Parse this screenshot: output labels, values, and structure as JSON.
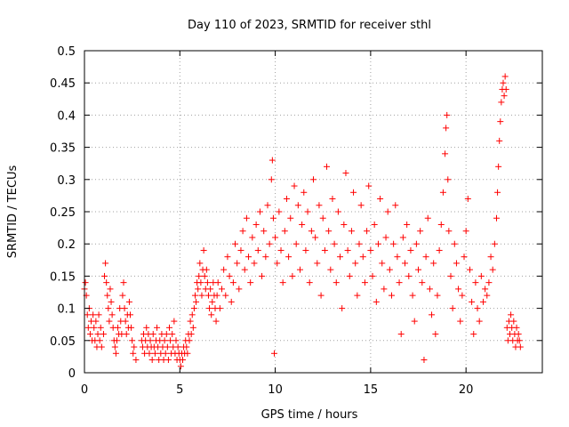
{
  "chart_data": {
    "type": "scatter",
    "title": "Day 110 of 2023, SRMTID for receiver sthl",
    "xlabel": "GPS time / hours",
    "ylabel": "SRMTID / TECUs",
    "xlim": [
      0,
      24
    ],
    "ylim": [
      0,
      0.5
    ],
    "x_ticks": [
      0,
      5,
      10,
      15,
      20
    ],
    "x_tick_labels": [
      "0",
      "5",
      "10",
      "15",
      "20"
    ],
    "y_ticks": [
      0,
      0.05,
      0.1,
      0.15,
      0.2,
      0.25,
      0.3,
      0.35,
      0.4,
      0.45,
      0.5
    ],
    "y_tick_labels": [
      "0",
      "0.05",
      "0.1",
      "0.15",
      "0.2",
      "0.25",
      "0.3",
      "0.35",
      "0.4",
      "0.45",
      "0.5"
    ],
    "grid": true,
    "marker": "+",
    "color": "#ff0000",
    "series": [
      {
        "values": [
          [
            0.0,
            0.13
          ],
          [
            0.05,
            0.14
          ],
          [
            0.1,
            0.12
          ],
          [
            0.15,
            0.09
          ],
          [
            0.2,
            0.07
          ],
          [
            0.25,
            0.1
          ],
          [
            0.3,
            0.06
          ],
          [
            0.35,
            0.08
          ],
          [
            0.4,
            0.05
          ],
          [
            0.45,
            0.09
          ],
          [
            0.5,
            0.07
          ],
          [
            0.55,
            0.05
          ],
          [
            0.6,
            0.08
          ],
          [
            0.65,
            0.04
          ],
          [
            0.7,
            0.06
          ],
          [
            0.75,
            0.09
          ],
          [
            0.8,
            0.05
          ],
          [
            0.85,
            0.07
          ],
          [
            0.9,
            0.04
          ],
          [
            1.0,
            0.06
          ],
          [
            1.05,
            0.15
          ],
          [
            1.1,
            0.17
          ],
          [
            1.15,
            0.14
          ],
          [
            1.2,
            0.12
          ],
          [
            1.25,
            0.1
          ],
          [
            1.3,
            0.08
          ],
          [
            1.35,
            0.13
          ],
          [
            1.4,
            0.11
          ],
          [
            1.45,
            0.09
          ],
          [
            1.5,
            0.07
          ],
          [
            1.55,
            0.05
          ],
          [
            1.6,
            0.04
          ],
          [
            1.65,
            0.03
          ],
          [
            1.7,
            0.05
          ],
          [
            1.75,
            0.07
          ],
          [
            1.8,
            0.06
          ],
          [
            1.85,
            0.1
          ],
          [
            1.9,
            0.08
          ],
          [
            1.95,
            0.06
          ],
          [
            2.0,
            0.12
          ],
          [
            2.05,
            0.14
          ],
          [
            2.1,
            0.1
          ],
          [
            2.15,
            0.08
          ],
          [
            2.2,
            0.06
          ],
          [
            2.25,
            0.09
          ],
          [
            2.3,
            0.07
          ],
          [
            2.35,
            0.11
          ],
          [
            2.4,
            0.09
          ],
          [
            2.45,
            0.07
          ],
          [
            2.5,
            0.05
          ],
          [
            2.55,
            0.03
          ],
          [
            2.6,
            0.04
          ],
          [
            2.7,
            0.02
          ],
          [
            3.0,
            0.05
          ],
          [
            3.05,
            0.04
          ],
          [
            3.1,
            0.06
          ],
          [
            3.15,
            0.03
          ],
          [
            3.2,
            0.05
          ],
          [
            3.25,
            0.07
          ],
          [
            3.3,
            0.04
          ],
          [
            3.35,
            0.06
          ],
          [
            3.4,
            0.03
          ],
          [
            3.45,
            0.05
          ],
          [
            3.5,
            0.04
          ],
          [
            3.55,
            0.02
          ],
          [
            3.6,
            0.06
          ],
          [
            3.65,
            0.04
          ],
          [
            3.7,
            0.03
          ],
          [
            3.75,
            0.05
          ],
          [
            3.8,
            0.07
          ],
          [
            3.85,
            0.04
          ],
          [
            3.9,
            0.02
          ],
          [
            3.95,
            0.05
          ],
          [
            4.0,
            0.03
          ],
          [
            4.05,
            0.06
          ],
          [
            4.1,
            0.04
          ],
          [
            4.15,
            0.02
          ],
          [
            4.2,
            0.05
          ],
          [
            4.25,
            0.03
          ],
          [
            4.3,
            0.06
          ],
          [
            4.35,
            0.04
          ],
          [
            4.4,
            0.02
          ],
          [
            4.45,
            0.07
          ],
          [
            4.5,
            0.05
          ],
          [
            4.55,
            0.03
          ],
          [
            4.6,
            0.06
          ],
          [
            4.65,
            0.04
          ],
          [
            4.7,
            0.08
          ],
          [
            4.75,
            0.03
          ],
          [
            4.8,
            0.05
          ],
          [
            4.85,
            0.02
          ],
          [
            4.9,
            0.04
          ],
          [
            4.95,
            0.03
          ],
          [
            5.0,
            0.02
          ],
          [
            5.05,
            0.01
          ],
          [
            5.1,
            0.03
          ],
          [
            5.15,
            0.02
          ],
          [
            5.2,
            0.04
          ],
          [
            5.25,
            0.03
          ],
          [
            5.3,
            0.05
          ],
          [
            5.35,
            0.04
          ],
          [
            5.4,
            0.03
          ],
          [
            5.45,
            0.06
          ],
          [
            5.5,
            0.05
          ],
          [
            5.55,
            0.08
          ],
          [
            5.6,
            0.06
          ],
          [
            5.65,
            0.09
          ],
          [
            5.7,
            0.07
          ],
          [
            5.75,
            0.1
          ],
          [
            5.8,
            0.12
          ],
          [
            5.85,
            0.11
          ],
          [
            5.9,
            0.14
          ],
          [
            5.95,
            0.13
          ],
          [
            6.0,
            0.15
          ],
          [
            6.05,
            0.17
          ],
          [
            6.1,
            0.14
          ],
          [
            6.15,
            0.12
          ],
          [
            6.2,
            0.16
          ],
          [
            6.25,
            0.19
          ],
          [
            6.3,
            0.15
          ],
          [
            6.35,
            0.13
          ],
          [
            6.4,
            0.16
          ],
          [
            6.45,
            0.14
          ],
          [
            6.5,
            0.12
          ],
          [
            6.55,
            0.1
          ],
          [
            6.6,
            0.13
          ],
          [
            6.65,
            0.09
          ],
          [
            6.7,
            0.11
          ],
          [
            6.75,
            0.14
          ],
          [
            6.8,
            0.12
          ],
          [
            6.85,
            0.1
          ],
          [
            6.9,
            0.08
          ],
          [
            6.95,
            0.12
          ],
          [
            7.0,
            0.14
          ],
          [
            7.1,
            0.1
          ],
          [
            7.2,
            0.13
          ],
          [
            7.3,
            0.16
          ],
          [
            7.4,
            0.12
          ],
          [
            7.5,
            0.18
          ],
          [
            7.6,
            0.15
          ],
          [
            7.7,
            0.11
          ],
          [
            7.8,
            0.14
          ],
          [
            7.9,
            0.2
          ],
          [
            8.0,
            0.17
          ],
          [
            8.1,
            0.13
          ],
          [
            8.2,
            0.19
          ],
          [
            8.3,
            0.22
          ],
          [
            8.4,
            0.16
          ],
          [
            8.5,
            0.24
          ],
          [
            8.6,
            0.18
          ],
          [
            8.7,
            0.14
          ],
          [
            8.8,
            0.21
          ],
          [
            8.9,
            0.17
          ],
          [
            9.0,
            0.23
          ],
          [
            9.1,
            0.19
          ],
          [
            9.2,
            0.25
          ],
          [
            9.3,
            0.15
          ],
          [
            9.4,
            0.22
          ],
          [
            9.5,
            0.18
          ],
          [
            9.6,
            0.26
          ],
          [
            9.7,
            0.2
          ],
          [
            9.8,
            0.3
          ],
          [
            9.85,
            0.33
          ],
          [
            9.9,
            0.24
          ],
          [
            9.95,
            0.03
          ],
          [
            10.0,
            0.21
          ],
          [
            10.1,
            0.17
          ],
          [
            10.2,
            0.25
          ],
          [
            10.3,
            0.19
          ],
          [
            10.4,
            0.14
          ],
          [
            10.5,
            0.22
          ],
          [
            10.6,
            0.27
          ],
          [
            10.7,
            0.18
          ],
          [
            10.8,
            0.24
          ],
          [
            10.9,
            0.15
          ],
          [
            11.0,
            0.29
          ],
          [
            11.1,
            0.2
          ],
          [
            11.2,
            0.26
          ],
          [
            11.3,
            0.16
          ],
          [
            11.4,
            0.23
          ],
          [
            11.5,
            0.28
          ],
          [
            11.6,
            0.19
          ],
          [
            11.7,
            0.25
          ],
          [
            11.8,
            0.14
          ],
          [
            11.9,
            0.22
          ],
          [
            12.0,
            0.3
          ],
          [
            12.1,
            0.21
          ],
          [
            12.2,
            0.17
          ],
          [
            12.3,
            0.26
          ],
          [
            12.4,
            0.12
          ],
          [
            12.5,
            0.24
          ],
          [
            12.6,
            0.19
          ],
          [
            12.7,
            0.32
          ],
          [
            12.8,
            0.22
          ],
          [
            12.9,
            0.16
          ],
          [
            13.0,
            0.27
          ],
          [
            13.1,
            0.2
          ],
          [
            13.2,
            0.14
          ],
          [
            13.3,
            0.25
          ],
          [
            13.4,
            0.18
          ],
          [
            13.5,
            0.1
          ],
          [
            13.6,
            0.23
          ],
          [
            13.7,
            0.31
          ],
          [
            13.8,
            0.19
          ],
          [
            13.9,
            0.15
          ],
          [
            14.0,
            0.22
          ],
          [
            14.1,
            0.28
          ],
          [
            14.2,
            0.17
          ],
          [
            14.3,
            0.12
          ],
          [
            14.4,
            0.2
          ],
          [
            14.5,
            0.26
          ],
          [
            14.6,
            0.18
          ],
          [
            14.7,
            0.14
          ],
          [
            14.8,
            0.22
          ],
          [
            14.9,
            0.29
          ],
          [
            15.0,
            0.19
          ],
          [
            15.1,
            0.15
          ],
          [
            15.2,
            0.23
          ],
          [
            15.3,
            0.11
          ],
          [
            15.4,
            0.2
          ],
          [
            15.5,
            0.27
          ],
          [
            15.6,
            0.17
          ],
          [
            15.7,
            0.13
          ],
          [
            15.8,
            0.21
          ],
          [
            15.9,
            0.25
          ],
          [
            16.0,
            0.16
          ],
          [
            16.1,
            0.12
          ],
          [
            16.2,
            0.2
          ],
          [
            16.3,
            0.26
          ],
          [
            16.4,
            0.18
          ],
          [
            16.5,
            0.14
          ],
          [
            16.6,
            0.06
          ],
          [
            16.7,
            0.21
          ],
          [
            16.8,
            0.17
          ],
          [
            16.9,
            0.23
          ],
          [
            17.0,
            0.15
          ],
          [
            17.1,
            0.19
          ],
          [
            17.2,
            0.12
          ],
          [
            17.3,
            0.08
          ],
          [
            17.4,
            0.2
          ],
          [
            17.5,
            0.16
          ],
          [
            17.6,
            0.22
          ],
          [
            17.7,
            0.14
          ],
          [
            17.8,
            0.02
          ],
          [
            17.9,
            0.18
          ],
          [
            18.0,
            0.24
          ],
          [
            18.1,
            0.13
          ],
          [
            18.2,
            0.09
          ],
          [
            18.3,
            0.17
          ],
          [
            18.4,
            0.06
          ],
          [
            18.5,
            0.12
          ],
          [
            18.6,
            0.19
          ],
          [
            18.7,
            0.23
          ],
          [
            18.8,
            0.28
          ],
          [
            18.9,
            0.34
          ],
          [
            18.95,
            0.38
          ],
          [
            19.0,
            0.4
          ],
          [
            19.05,
            0.3
          ],
          [
            19.1,
            0.22
          ],
          [
            19.2,
            0.15
          ],
          [
            19.3,
            0.1
          ],
          [
            19.4,
            0.2
          ],
          [
            19.5,
            0.17
          ],
          [
            19.6,
            0.13
          ],
          [
            19.7,
            0.08
          ],
          [
            19.8,
            0.12
          ],
          [
            19.9,
            0.18
          ],
          [
            20.0,
            0.22
          ],
          [
            20.1,
            0.27
          ],
          [
            20.2,
            0.16
          ],
          [
            20.3,
            0.11
          ],
          [
            20.4,
            0.06
          ],
          [
            20.5,
            0.14
          ],
          [
            20.6,
            0.1
          ],
          [
            20.7,
            0.08
          ],
          [
            20.8,
            0.15
          ],
          [
            20.9,
            0.11
          ],
          [
            21.0,
            0.13
          ],
          [
            21.1,
            0.12
          ],
          [
            21.2,
            0.14
          ],
          [
            21.3,
            0.18
          ],
          [
            21.4,
            0.16
          ],
          [
            21.5,
            0.2
          ],
          [
            21.6,
            0.24
          ],
          [
            21.65,
            0.28
          ],
          [
            21.7,
            0.32
          ],
          [
            21.75,
            0.36
          ],
          [
            21.8,
            0.39
          ],
          [
            21.85,
            0.42
          ],
          [
            21.9,
            0.44
          ],
          [
            21.95,
            0.45
          ],
          [
            22.0,
            0.43
          ],
          [
            22.05,
            0.46
          ],
          [
            22.1,
            0.44
          ],
          [
            22.15,
            0.07
          ],
          [
            22.2,
            0.05
          ],
          [
            22.25,
            0.08
          ],
          [
            22.3,
            0.06
          ],
          [
            22.35,
            0.09
          ],
          [
            22.4,
            0.07
          ],
          [
            22.45,
            0.05
          ],
          [
            22.5,
            0.08
          ],
          [
            22.55,
            0.06
          ],
          [
            22.6,
            0.04
          ],
          [
            22.65,
            0.07
          ],
          [
            22.7,
            0.05
          ],
          [
            22.75,
            0.06
          ],
          [
            22.8,
            0.05
          ],
          [
            22.85,
            0.04
          ]
        ]
      }
    ]
  }
}
